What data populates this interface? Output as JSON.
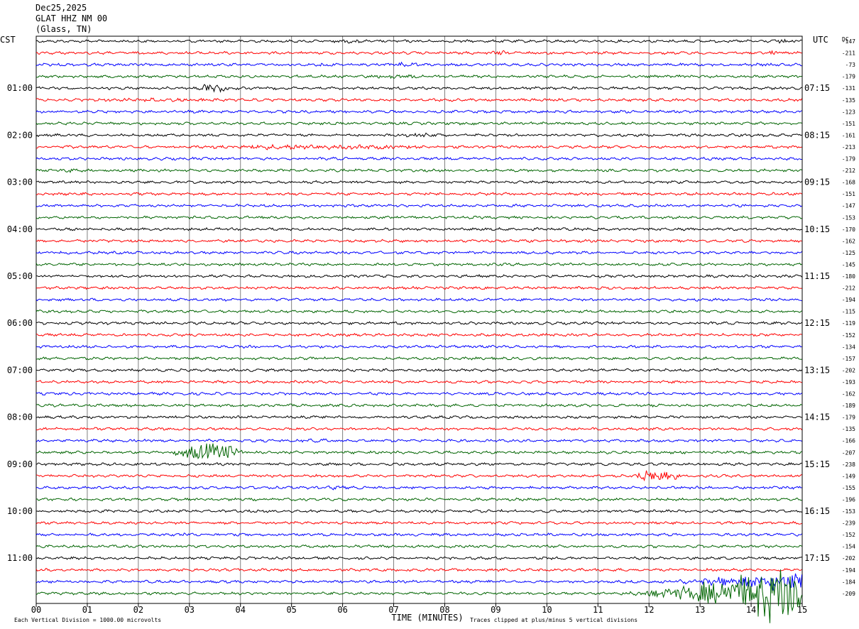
{
  "header": {
    "date": "Dec25,2025",
    "station": "GLAT HHZ NM 00",
    "location": "(Glass, TN)"
  },
  "left_tz": "CST",
  "right_tz": "UTC",
  "dc_label": "DC",
  "footer": {
    "xlabel": "TIME (MINUTES)",
    "scale_note": "Each Vertical Division = 1000.00 microvolts",
    "clip_note": "Traces clipped at plus/minus 5 vertical divisions"
  },
  "colors": {
    "trace_cycle": [
      "#000000",
      "#ff0000",
      "#0000ff",
      "#006400"
    ],
    "grid": "#808080",
    "axis": "#000000"
  },
  "chart_data": {
    "type": "helicorder",
    "xlabel": "TIME (MINUTES)",
    "xlim": [
      0,
      15
    ],
    "x_ticks": [
      "00",
      "01",
      "02",
      "03",
      "04",
      "05",
      "06",
      "07",
      "08",
      "09",
      "10",
      "11",
      "12",
      "13",
      "14",
      "15"
    ],
    "row_count": 48,
    "row_minutes": 15,
    "left_time_labels": [
      {
        "row": 4,
        "label": "01:00"
      },
      {
        "row": 8,
        "label": "02:00"
      },
      {
        "row": 12,
        "label": "03:00"
      },
      {
        "row": 16,
        "label": "04:00"
      },
      {
        "row": 20,
        "label": "05:00"
      },
      {
        "row": 24,
        "label": "06:00"
      },
      {
        "row": 28,
        "label": "07:00"
      },
      {
        "row": 32,
        "label": "08:00"
      },
      {
        "row": 36,
        "label": "09:00"
      },
      {
        "row": 40,
        "label": "10:00"
      },
      {
        "row": 44,
        "label": "11:00"
      }
    ],
    "right_time_labels": [
      {
        "row": 4,
        "label": "07:15"
      },
      {
        "row": 8,
        "label": "08:15"
      },
      {
        "row": 12,
        "label": "09:15"
      },
      {
        "row": 16,
        "label": "10:15"
      },
      {
        "row": 20,
        "label": "11:15"
      },
      {
        "row": 24,
        "label": "12:15"
      },
      {
        "row": 28,
        "label": "13:15"
      },
      {
        "row": 32,
        "label": "14:15"
      },
      {
        "row": 36,
        "label": "15:15"
      },
      {
        "row": 40,
        "label": "16:15"
      },
      {
        "row": 44,
        "label": "17:15"
      }
    ],
    "dc_offsets": [
      -147,
      -211,
      -73,
      -179,
      -131,
      -135,
      -123,
      -151,
      -161,
      -213,
      -179,
      -212,
      -168,
      -151,
      -147,
      -153,
      -170,
      -162,
      -125,
      -145,
      -180,
      -212,
      -194,
      -115,
      -119,
      -152,
      -134,
      -157,
      -202,
      -193,
      -162,
      -189,
      -179,
      -135,
      -166,
      -207,
      -238,
      -149,
      -155,
      -196,
      -153,
      -239,
      -152,
      -154,
      -202,
      -194,
      -184,
      -209
    ],
    "events": [
      {
        "row": 0,
        "start_min": 5.6,
        "end_min": 6.6,
        "amp": 3
      },
      {
        "row": 0,
        "start_min": 14.4,
        "end_min": 15.0,
        "amp": 4
      },
      {
        "row": 1,
        "start_min": 8.8,
        "end_min": 9.3,
        "amp": 4
      },
      {
        "row": 1,
        "start_min": 14.2,
        "end_min": 14.7,
        "amp": 4
      },
      {
        "row": 2,
        "start_min": 5.2,
        "end_min": 6.0,
        "amp": 3
      },
      {
        "row": 2,
        "start_min": 6.8,
        "end_min": 7.8,
        "amp": 3
      },
      {
        "row": 3,
        "start_min": 6.3,
        "end_min": 8.2,
        "amp": 3
      },
      {
        "row": 4,
        "start_min": 3.0,
        "end_min": 3.9,
        "amp": 7
      },
      {
        "row": 5,
        "start_min": 0.2,
        "end_min": 5.0,
        "amp": 2.5
      },
      {
        "row": 8,
        "start_min": 7.0,
        "end_min": 8.2,
        "amp": 3
      },
      {
        "row": 9,
        "start_min": 2.3,
        "end_min": 8.5,
        "amp": 4
      },
      {
        "row": 11,
        "start_min": 0.4,
        "end_min": 0.8,
        "amp": 4
      },
      {
        "row": 34,
        "start_min": 5.0,
        "end_min": 6.2,
        "amp": 3
      },
      {
        "row": 35,
        "start_min": 2.6,
        "end_min": 4.2,
        "amp": 14
      },
      {
        "row": 37,
        "start_min": 11.6,
        "end_min": 12.7,
        "amp": 12
      },
      {
        "row": 38,
        "start_min": 5.6,
        "end_min": 6.2,
        "amp": 3
      },
      {
        "row": 42,
        "start_min": 2.7,
        "end_min": 3.0,
        "amp": 4
      },
      {
        "row": 46,
        "start_min": 10.5,
        "end_min": 15.0,
        "amp": 18,
        "growing": true
      },
      {
        "row": 47,
        "start_min": 10.5,
        "end_min": 15.0,
        "amp": 60,
        "growing": true
      }
    ]
  }
}
